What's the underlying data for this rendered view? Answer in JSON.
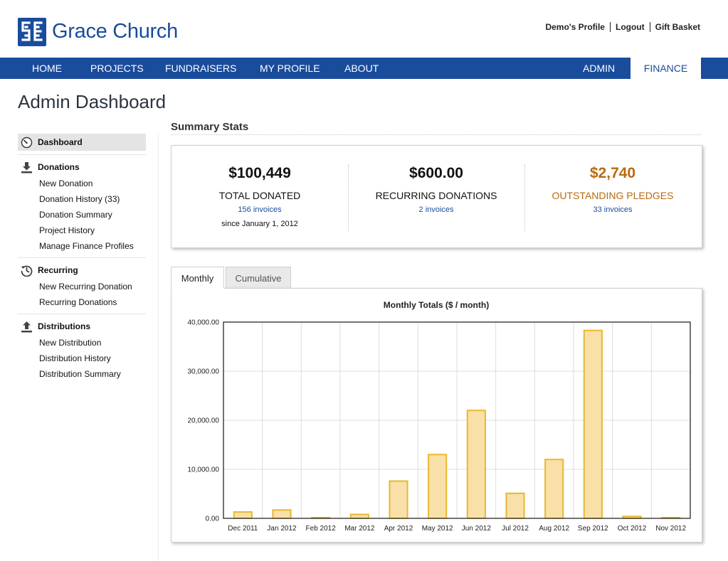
{
  "header": {
    "brand": "Grace Church",
    "links": {
      "profile": "Demo's Profile",
      "logout": "Logout",
      "gift_basket": "Gift Basket"
    }
  },
  "nav": {
    "items": [
      "HOME",
      "PROJECTS",
      "FUNDRAISERS",
      "MY PROFILE",
      "ABOUT",
      "ADMIN"
    ],
    "active": "FINANCE"
  },
  "page": {
    "title": "Admin Dashboard"
  },
  "sidebar": {
    "dashboard": "Dashboard",
    "donations": {
      "heading": "Donations",
      "links": [
        "New Donation",
        "Donation History (33)",
        "Donation Summary",
        "Project History",
        "Manage Finance Profiles"
      ]
    },
    "recurring": {
      "heading": "Recurring",
      "links": [
        "New Recurring Donation",
        "Recurring Donations"
      ]
    },
    "distributions": {
      "heading": "Distributions",
      "links": [
        "New Distribution",
        "Distribution History",
        "Distribution Summary"
      ]
    }
  },
  "summary": {
    "title": "Summary Stats",
    "total": {
      "value": "$100,449",
      "label": "TOTAL DONATED",
      "invoices": "156 invoices",
      "since": "since January 1, 2012"
    },
    "recurring": {
      "value": "$600.00",
      "label": "RECURRING DONATIONS",
      "invoices": "2 invoices"
    },
    "outstanding": {
      "value": "$2,740",
      "label": "OUTSTANDING PLEDGES",
      "invoices": "33 invoices"
    }
  },
  "tabs": {
    "monthly": "Monthly",
    "cumulative": "Cumulative"
  },
  "colors": {
    "brand": "#1a4c9c",
    "pledge": "#b96a0e",
    "bar_fill": "#f8e0a8",
    "bar_stroke": "#e8b830"
  },
  "chart_data": {
    "type": "bar",
    "title": "Monthly Totals ($ / month)",
    "xlabel": "",
    "ylabel": "",
    "categories": [
      "Dec 2011",
      "Jan 2012",
      "Feb 2012",
      "Mar 2012",
      "Apr 2012",
      "May 2012",
      "Jun 2012",
      "Jul 2012",
      "Aug 2012",
      "Sep 2012",
      "Oct 2012",
      "Nov 2012"
    ],
    "values": [
      1300,
      1700,
      150,
      800,
      7600,
      13000,
      22000,
      5100,
      12000,
      38300,
      400,
      150
    ],
    "ylim": [
      0,
      40000
    ],
    "yticks": [
      "0.00",
      "10,000.00",
      "20,000.00",
      "30,000.00",
      "40,000.00"
    ],
    "grid": true
  }
}
